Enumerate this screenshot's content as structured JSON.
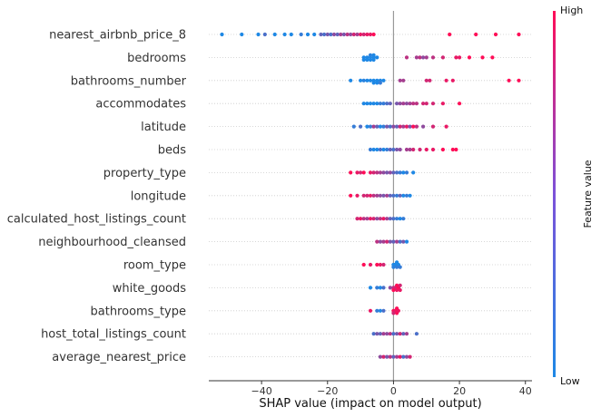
{
  "chart_data": {
    "type": "scatter",
    "xlabel": "SHAP value (impact on model output)",
    "xlim": [
      -56,
      42
    ],
    "xticks": [
      -40,
      -20,
      0,
      20,
      40
    ],
    "colorbar": {
      "label": "Feature value",
      "high_label": "High",
      "low_label": "Low",
      "low_color": "#1E88E5",
      "high_color": "#FF0D57"
    },
    "features": [
      {
        "name": "nearest_airbnb_price_8",
        "points": [
          [
            -52,
            0.0
          ],
          [
            -46,
            0.0
          ],
          [
            -41,
            0.0
          ],
          [
            -39,
            0.2
          ],
          [
            -36,
            0.0
          ],
          [
            -33,
            0.0
          ],
          [
            -31,
            0.0
          ],
          [
            -28,
            0.1
          ],
          [
            -26,
            0.0
          ],
          [
            -24,
            0.0
          ],
          [
            -22,
            0.3
          ],
          [
            -21,
            0.2
          ],
          [
            -20,
            0.4
          ],
          [
            -19,
            0.2
          ],
          [
            -18,
            0.5
          ],
          [
            -17,
            0.3
          ],
          [
            -16,
            0.6
          ],
          [
            -15,
            0.4
          ],
          [
            -14,
            0.7
          ],
          [
            -13,
            0.5
          ],
          [
            -12,
            0.8
          ],
          [
            -11,
            0.6
          ],
          [
            -10,
            0.9
          ],
          [
            -9,
            0.8
          ],
          [
            -8,
            0.9
          ],
          [
            -7,
            0.9
          ],
          [
            -6,
            1.0
          ],
          [
            17,
            1.0
          ],
          [
            25,
            1.0
          ],
          [
            31,
            1.0
          ],
          [
            38,
            1.0
          ]
        ]
      },
      {
        "name": "bedrooms",
        "points": [
          [
            -9,
            0.0
          ],
          [
            -8,
            0.0
          ],
          [
            -8,
            0.0
          ],
          [
            -7,
            0.0
          ],
          [
            -7,
            0.0
          ],
          [
            -6,
            0.0
          ],
          [
            -6,
            0.0
          ],
          [
            -5,
            0.0
          ],
          [
            -9,
            0.0
          ],
          [
            -7,
            0.05
          ],
          [
            -6,
            0.0
          ],
          [
            4,
            0.7
          ],
          [
            7,
            0.6
          ],
          [
            8,
            0.7
          ],
          [
            9,
            0.5
          ],
          [
            10,
            0.6
          ],
          [
            12,
            0.7
          ],
          [
            15,
            0.8
          ],
          [
            19,
            0.9
          ],
          [
            20,
            0.9
          ],
          [
            23,
            1.0
          ],
          [
            27,
            1.0
          ],
          [
            30,
            1.0
          ]
        ]
      },
      {
        "name": "bathrooms_number",
        "points": [
          [
            -13,
            0.0
          ],
          [
            -10,
            0.0
          ],
          [
            -8,
            0.0
          ],
          [
            -7,
            0.0
          ],
          [
            -6,
            0.0
          ],
          [
            -5,
            0.0
          ],
          [
            -4,
            0.0
          ],
          [
            -3,
            0.0
          ],
          [
            -9,
            0.05
          ],
          [
            -6,
            0.0
          ],
          [
            -5,
            0.0
          ],
          [
            -4,
            0.1
          ],
          [
            2,
            0.6
          ],
          [
            3,
            0.6
          ],
          [
            10,
            0.8
          ],
          [
            11,
            0.8
          ],
          [
            16,
            0.9
          ],
          [
            18,
            0.9
          ],
          [
            35,
            1.0
          ],
          [
            38,
            1.0
          ]
        ]
      },
      {
        "name": "accommodates",
        "points": [
          [
            -9,
            0.0
          ],
          [
            -8,
            0.0
          ],
          [
            -7,
            0.0
          ],
          [
            -6,
            0.0
          ],
          [
            -5,
            0.0
          ],
          [
            -4,
            0.1
          ],
          [
            -3,
            0.1
          ],
          [
            -2,
            0.2
          ],
          [
            -1,
            0.3
          ],
          [
            1,
            0.4
          ],
          [
            2,
            0.5
          ],
          [
            3,
            0.6
          ],
          [
            4,
            0.5
          ],
          [
            5,
            0.6
          ],
          [
            6,
            0.7
          ],
          [
            7,
            0.7
          ],
          [
            9,
            0.8
          ],
          [
            10,
            0.8
          ],
          [
            12,
            0.8
          ],
          [
            15,
            0.9
          ],
          [
            20,
            1.0
          ]
        ]
      },
      {
        "name": "latitude",
        "points": [
          [
            -12,
            0.1
          ],
          [
            -10,
            0.2
          ],
          [
            -8,
            0.0
          ],
          [
            -7,
            0.1
          ],
          [
            -6,
            0.6
          ],
          [
            -5,
            0.3
          ],
          [
            -4,
            0.0
          ],
          [
            -3,
            0.1
          ],
          [
            -2,
            0.4
          ],
          [
            -1,
            0.2
          ],
          [
            0,
            0.5
          ],
          [
            1,
            0.3
          ],
          [
            2,
            0.8
          ],
          [
            3,
            0.6
          ],
          [
            4,
            0.9
          ],
          [
            5,
            0.4
          ],
          [
            6,
            1.0
          ],
          [
            7,
            0.7
          ],
          [
            9,
            0.5
          ],
          [
            12,
            0.8
          ],
          [
            16,
            0.9
          ]
        ]
      },
      {
        "name": "beds",
        "points": [
          [
            -7,
            0.1
          ],
          [
            -6,
            0.0
          ],
          [
            -5,
            0.0
          ],
          [
            -4,
            0.2
          ],
          [
            -3,
            0.0
          ],
          [
            -2,
            0.1
          ],
          [
            -1,
            0.3
          ],
          [
            0,
            0.2
          ],
          [
            1,
            0.4
          ],
          [
            2,
            0.5
          ],
          [
            4,
            0.6
          ],
          [
            5,
            0.6
          ],
          [
            6,
            0.8
          ],
          [
            8,
            0.8
          ],
          [
            10,
            0.9
          ],
          [
            12,
            0.9
          ],
          [
            15,
            1.0
          ],
          [
            18,
            1.0
          ],
          [
            19,
            1.0
          ]
        ]
      },
      {
        "name": "property_type",
        "points": [
          [
            -13,
            1.0
          ],
          [
            -11,
            0.9
          ],
          [
            -10,
            0.8
          ],
          [
            -9,
            1.0
          ],
          [
            -7,
            0.9
          ],
          [
            -6,
            0.8
          ],
          [
            -5,
            0.7
          ],
          [
            -4,
            0.6
          ],
          [
            -3,
            0.5
          ],
          [
            -2,
            0.4
          ],
          [
            -1,
            0.5
          ],
          [
            0,
            0.3
          ],
          [
            1,
            0.2
          ],
          [
            2,
            0.1
          ],
          [
            3,
            0.0
          ],
          [
            4,
            0.1
          ],
          [
            6,
            0.0
          ]
        ]
      },
      {
        "name": "longitude",
        "points": [
          [
            -13,
            1.0
          ],
          [
            -11,
            0.9
          ],
          [
            -9,
            0.8
          ],
          [
            -8,
            0.8
          ],
          [
            -7,
            0.9
          ],
          [
            -6,
            0.7
          ],
          [
            -5,
            0.6
          ],
          [
            -4,
            0.5
          ],
          [
            -3,
            0.4
          ],
          [
            -2,
            0.6
          ],
          [
            -1,
            0.3
          ],
          [
            0,
            0.2
          ],
          [
            1,
            0.1
          ],
          [
            2,
            0.3
          ],
          [
            3,
            0.0
          ],
          [
            4,
            0.1
          ],
          [
            5,
            0.0
          ]
        ]
      },
      {
        "name": "calculated_host_listings_count",
        "points": [
          [
            -11,
            0.8
          ],
          [
            -10,
            0.9
          ],
          [
            -9,
            0.7
          ],
          [
            -8,
            0.6
          ],
          [
            -7,
            0.9
          ],
          [
            -6,
            0.8
          ],
          [
            -5,
            0.5
          ],
          [
            -4,
            0.7
          ],
          [
            -3,
            0.9
          ],
          [
            -2,
            0.6
          ],
          [
            -1,
            0.3
          ],
          [
            0,
            0.2
          ],
          [
            1,
            0.1
          ],
          [
            2,
            0.0
          ],
          [
            3,
            0.1
          ]
        ]
      },
      {
        "name": "neighbourhood_cleansed",
        "points": [
          [
            -5,
            0.7
          ],
          [
            -4,
            0.5
          ],
          [
            -3,
            0.6
          ],
          [
            -2,
            0.8
          ],
          [
            -1,
            0.4
          ],
          [
            0,
            0.3
          ],
          [
            1,
            0.6
          ],
          [
            2,
            0.2
          ],
          [
            3,
            0.4
          ],
          [
            4,
            0.0
          ]
        ]
      },
      {
        "name": "room_type",
        "points": [
          [
            -9,
            1.0
          ],
          [
            -7,
            0.9
          ],
          [
            -5,
            1.0
          ],
          [
            -4,
            0.9
          ],
          [
            -3,
            0.8
          ],
          [
            0,
            0.0
          ],
          [
            0.5,
            0.0
          ],
          [
            1,
            0.1
          ],
          [
            1.5,
            0.0
          ],
          [
            0,
            0.05
          ],
          [
            1,
            0.0
          ],
          [
            2,
            0.1
          ]
        ]
      },
      {
        "name": "white_goods",
        "points": [
          [
            -7,
            0.0
          ],
          [
            -5,
            0.1
          ],
          [
            -4,
            0.0
          ],
          [
            -3,
            0.2
          ],
          [
            -1,
            0.5
          ],
          [
            0,
            0.7
          ],
          [
            0.5,
            0.8
          ],
          [
            1,
            0.9
          ],
          [
            1.5,
            1.0
          ],
          [
            2,
            0.9
          ],
          [
            0,
            1.0
          ],
          [
            1,
            1.0
          ],
          [
            2,
            0.8
          ]
        ]
      },
      {
        "name": "bathrooms_type",
        "points": [
          [
            -7,
            0.9
          ],
          [
            -5,
            0.1
          ],
          [
            -4,
            0.0
          ],
          [
            -3,
            0.2
          ],
          [
            0,
            1.0
          ],
          [
            0.5,
            0.9
          ],
          [
            1,
            1.0
          ],
          [
            1.5,
            0.9
          ],
          [
            0,
            0.8
          ],
          [
            1,
            1.0
          ]
        ]
      },
      {
        "name": "host_total_listings_count",
        "points": [
          [
            -6,
            0.2
          ],
          [
            -5,
            0.4
          ],
          [
            -4,
            0.3
          ],
          [
            -3,
            0.6
          ],
          [
            -2,
            0.5
          ],
          [
            -1,
            0.7
          ],
          [
            0,
            0.2
          ],
          [
            1,
            0.4
          ],
          [
            2,
            0.8
          ],
          [
            3,
            0.3
          ],
          [
            4,
            0.6
          ],
          [
            7,
            0.2
          ]
        ]
      },
      {
        "name": "average_nearest_price",
        "points": [
          [
            -4,
            0.5
          ],
          [
            -3,
            0.8
          ],
          [
            -2,
            0.4
          ],
          [
            -1,
            0.7
          ],
          [
            0,
            0.3
          ],
          [
            1,
            0.6
          ],
          [
            2,
            0.9
          ],
          [
            3,
            0.2
          ],
          [
            4,
            0.5
          ],
          [
            5,
            0.8
          ]
        ]
      }
    ]
  }
}
